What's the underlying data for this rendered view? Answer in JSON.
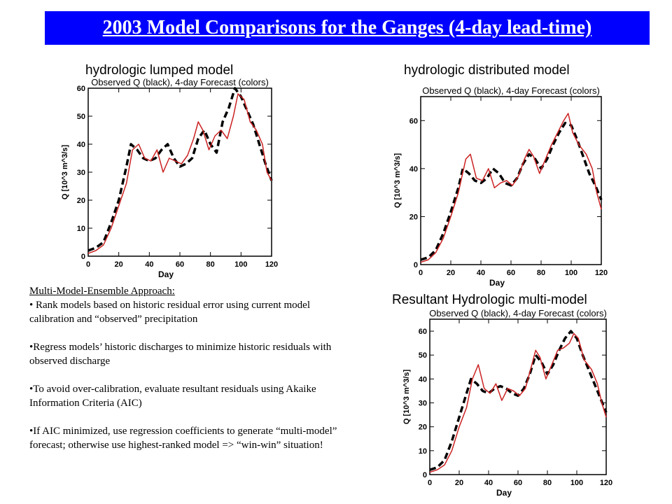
{
  "title": "2003 Model Comparisons for the Ganges (4-day lead-time)",
  "captions": {
    "lumped": "hydrologic lumped model",
    "distributed": "hydrologic distributed model",
    "multi": "Resultant Hydrologic multi-model"
  },
  "notes": {
    "heading": "Multi-Model-Ensemble Approach:",
    "bullets": [
      "• Rank models based on historic residual error using current model calibration and “observed” precipitation",
      "•Regress models’ historic discharges to minimize historic residuals with observed discharge",
      "•To avoid over-calibration, evaluate resultant residuals using Akaike Information Criteria (AIC)",
      "•If AIC minimized, use regression coefficients to generate “multi-model” forecast; otherwise use highest-ranked model => “win-win” situation!"
    ]
  },
  "colors": {
    "title_bg": "#0000ff",
    "observed": "#000000",
    "forecast": "#cc2222"
  },
  "chart_data": [
    {
      "type": "line",
      "title": "Observed Q (black), 4-day Forecast (colors)",
      "xlabel": "Day",
      "ylabel": "Q [10^3 m^3/s]",
      "xlim": [
        0,
        120
      ],
      "ylim": [
        0,
        60
      ],
      "xticks": [
        0,
        20,
        40,
        60,
        80,
        100,
        120
      ],
      "yticks": [
        0,
        10,
        20,
        30,
        40,
        50,
        60
      ],
      "series": [
        {
          "name": "Observed Q",
          "style": "dashed",
          "x": [
            0,
            5,
            10,
            15,
            20,
            25,
            28,
            32,
            36,
            40,
            44,
            48,
            52,
            56,
            60,
            64,
            68,
            72,
            76,
            80,
            84,
            88,
            92,
            96,
            100,
            104,
            108,
            112,
            116,
            120
          ],
          "y": [
            2,
            3,
            5,
            12,
            20,
            32,
            40,
            38,
            35,
            34,
            35,
            38,
            40,
            35,
            32,
            33,
            35,
            42,
            45,
            40,
            37,
            48,
            53,
            60,
            57,
            52,
            47,
            40,
            33,
            27
          ]
        },
        {
          "name": "4-day Forecast",
          "style": "solid",
          "x": [
            0,
            5,
            10,
            15,
            20,
            25,
            29,
            33,
            37,
            41,
            45,
            49,
            53,
            57,
            61,
            65,
            69,
            72,
            75,
            79,
            83,
            87,
            91,
            95,
            98,
            102,
            106,
            110,
            114,
            117,
            120
          ],
          "y": [
            1,
            2,
            4,
            10,
            18,
            26,
            38,
            40,
            35,
            34,
            38,
            30,
            35,
            34,
            33,
            36,
            42,
            48,
            45,
            38,
            43,
            45,
            42,
            50,
            58,
            56,
            48,
            45,
            40,
            30,
            27
          ]
        }
      ]
    },
    {
      "type": "line",
      "title": "Observed Q (black), 4-day Forecast (colors)",
      "xlabel": "Day",
      "ylabel": "Q [10^3 m^3/s]",
      "xlim": [
        0,
        120
      ],
      "ylim": [
        0,
        70
      ],
      "xticks": [
        0,
        20,
        40,
        60,
        80,
        100,
        120
      ],
      "yticks": [
        0,
        20,
        40,
        60
      ],
      "series": [
        {
          "name": "Observed Q",
          "style": "dashed",
          "x": [
            0,
            5,
            10,
            15,
            20,
            25,
            28,
            32,
            36,
            40,
            44,
            48,
            52,
            56,
            60,
            64,
            68,
            72,
            76,
            80,
            84,
            88,
            92,
            96,
            100,
            104,
            108,
            112,
            116,
            120
          ],
          "y": [
            2,
            3,
            6,
            13,
            22,
            32,
            40,
            38,
            35,
            34,
            36,
            40,
            38,
            34,
            33,
            36,
            42,
            46,
            44,
            40,
            44,
            50,
            55,
            59,
            58,
            52,
            45,
            38,
            33,
            27
          ]
        },
        {
          "name": "4-day Forecast",
          "style": "solid",
          "x": [
            0,
            5,
            10,
            15,
            20,
            25,
            30,
            33,
            37,
            41,
            45,
            49,
            53,
            57,
            61,
            65,
            69,
            72,
            75,
            79,
            83,
            87,
            91,
            95,
            98,
            101,
            105,
            110,
            114,
            117,
            120
          ],
          "y": [
            1,
            2,
            5,
            11,
            20,
            30,
            44,
            46,
            36,
            35,
            40,
            32,
            34,
            35,
            33,
            37,
            44,
            48,
            45,
            38,
            44,
            50,
            55,
            60,
            63,
            55,
            50,
            46,
            40,
            30,
            23
          ]
        }
      ]
    },
    {
      "type": "line",
      "title": "Observed Q (black), 4-day Forecast (colors)",
      "xlabel": "Day",
      "ylabel": "Q [10^3 m^3/s]",
      "xlim": [
        0,
        120
      ],
      "ylim": [
        0,
        65
      ],
      "xticks": [
        0,
        20,
        40,
        60,
        80,
        100,
        120
      ],
      "yticks": [
        0,
        10,
        20,
        30,
        40,
        50,
        60
      ],
      "series": [
        {
          "name": "Observed Q",
          "style": "dashed",
          "x": [
            0,
            5,
            10,
            15,
            20,
            25,
            28,
            32,
            36,
            40,
            44,
            48,
            52,
            56,
            60,
            64,
            68,
            72,
            76,
            80,
            84,
            88,
            92,
            96,
            100,
            104,
            108,
            112,
            116,
            120
          ],
          "y": [
            2,
            3,
            6,
            14,
            24,
            34,
            40,
            38,
            35,
            34,
            36,
            37,
            36,
            34,
            33,
            36,
            42,
            50,
            47,
            42,
            46,
            52,
            57,
            60,
            57,
            50,
            44,
            38,
            32,
            26
          ]
        },
        {
          "name": "4-day Forecast",
          "style": "solid",
          "x": [
            0,
            5,
            10,
            15,
            20,
            25,
            29,
            33,
            37,
            41,
            45,
            49,
            53,
            57,
            61,
            65,
            69,
            72,
            75,
            79,
            83,
            87,
            91,
            95,
            98,
            101,
            105,
            110,
            114,
            117,
            120
          ],
          "y": [
            1,
            2,
            4,
            10,
            20,
            28,
            40,
            46,
            36,
            34,
            38,
            31,
            36,
            35,
            33,
            36,
            45,
            52,
            49,
            40,
            46,
            52,
            53,
            55,
            59,
            57,
            48,
            44,
            38,
            30,
            24
          ]
        }
      ]
    }
  ]
}
